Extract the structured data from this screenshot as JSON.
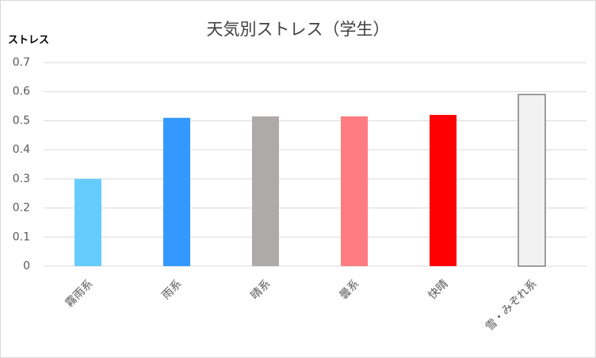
{
  "chart_data": {
    "type": "bar",
    "title": "天気別ストレス（学生）",
    "y_label": "ストレス",
    "categories": [
      "霧雨系",
      "雨系",
      "晴系",
      "曇系",
      "快晴",
      "雪・みぞれ系"
    ],
    "values": [
      0.3,
      0.51,
      0.515,
      0.515,
      0.52,
      0.59
    ],
    "colors": [
      "#66ccff",
      "#3399ff",
      "#aeaaaa",
      "#ff7c80",
      "#ff0000",
      "#f2f2f2"
    ],
    "ylim": [
      0,
      0.7
    ],
    "yticks": [
      0,
      0.1,
      0.2,
      0.3,
      0.4,
      0.5,
      0.6,
      0.7
    ],
    "grid": true
  }
}
